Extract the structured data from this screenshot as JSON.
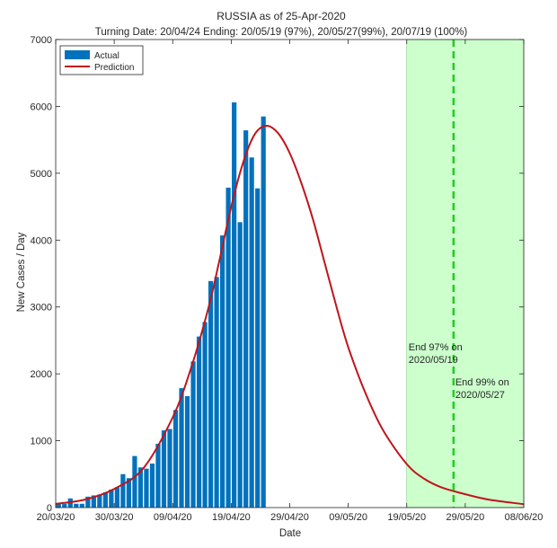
{
  "chart_data": {
    "type": "bar",
    "title": "RUSSIA as of 25-Apr-2020",
    "subtitle": "Turning Date: 20/04/24  Ending: 20/05/19 (97%), 20/05/27(99%), 20/07/19 (100%)",
    "xlabel": "Date",
    "ylabel": "New Cases / Day",
    "ylim": [
      0,
      7000
    ],
    "yticks": [
      0,
      1000,
      2000,
      3000,
      4000,
      5000,
      6000,
      7000
    ],
    "xlim": [
      "2020-03-20",
      "2020-06-08"
    ],
    "xtick_dates": [
      "2020-03-20",
      "2020-03-30",
      "2020-04-09",
      "2020-04-19",
      "2020-04-29",
      "2020-05-09",
      "2020-05-19",
      "2020-05-29",
      "2020-06-08"
    ],
    "xtick_labels": [
      "20/03/20",
      "30/03/20",
      "09/04/20",
      "19/04/20",
      "29/04/20",
      "09/05/20",
      "19/05/20",
      "29/05/20",
      "08/06/20"
    ],
    "grid": false,
    "legend": {
      "position": "top-left",
      "entries": [
        "Actual",
        "Prediction"
      ]
    },
    "series": [
      {
        "name": "Actual",
        "type": "bar",
        "color": "#0072BD",
        "points": [
          [
            "2020-03-20",
            53
          ],
          [
            "2020-03-21",
            53
          ],
          [
            "2020-03-22",
            137
          ],
          [
            "2020-03-23",
            57
          ],
          [
            "2020-03-24",
            57
          ],
          [
            "2020-03-25",
            163
          ],
          [
            "2020-03-26",
            182
          ],
          [
            "2020-03-27",
            196
          ],
          [
            "2020-03-28",
            228
          ],
          [
            "2020-03-29",
            270
          ],
          [
            "2020-03-30",
            302
          ],
          [
            "2020-03-31",
            500
          ],
          [
            "2020-04-01",
            440
          ],
          [
            "2020-04-02",
            771
          ],
          [
            "2020-04-03",
            601
          ],
          [
            "2020-04-04",
            582
          ],
          [
            "2020-04-05",
            658
          ],
          [
            "2020-04-06",
            954
          ],
          [
            "2020-04-07",
            1154
          ],
          [
            "2020-04-08",
            1175
          ],
          [
            "2020-04-09",
            1459
          ],
          [
            "2020-04-10",
            1786
          ],
          [
            "2020-04-11",
            1667
          ],
          [
            "2020-04-12",
            2186
          ],
          [
            "2020-04-13",
            2558
          ],
          [
            "2020-04-14",
            2774
          ],
          [
            "2020-04-15",
            3388
          ],
          [
            "2020-04-16",
            3448
          ],
          [
            "2020-04-17",
            4070
          ],
          [
            "2020-04-18",
            4785
          ],
          [
            "2020-04-19",
            6060
          ],
          [
            "2020-04-20",
            4268
          ],
          [
            "2020-04-21",
            5642
          ],
          [
            "2020-04-22",
            5236
          ],
          [
            "2020-04-23",
            4774
          ],
          [
            "2020-04-24",
            5849
          ]
        ]
      },
      {
        "name": "Prediction",
        "type": "line",
        "color": "#C0151B",
        "points": [
          [
            "2020-03-20",
            55
          ],
          [
            "2020-03-25",
            120
          ],
          [
            "2020-03-30",
            280
          ],
          [
            "2020-04-04",
            590
          ],
          [
            "2020-04-09",
            1350
          ],
          [
            "2020-04-12",
            2050
          ],
          [
            "2020-04-15",
            2950
          ],
          [
            "2020-04-17",
            3700
          ],
          [
            "2020-04-19",
            4500
          ],
          [
            "2020-04-21",
            5150
          ],
          [
            "2020-04-23",
            5580
          ],
          [
            "2020-04-25",
            5710
          ],
          [
            "2020-04-27",
            5600
          ],
          [
            "2020-04-29",
            5300
          ],
          [
            "2020-05-01",
            4850
          ],
          [
            "2020-05-03",
            4300
          ],
          [
            "2020-05-05",
            3650
          ],
          [
            "2020-05-07",
            3000
          ],
          [
            "2020-05-09",
            2400
          ],
          [
            "2020-05-12",
            1700
          ],
          [
            "2020-05-15",
            1150
          ],
          [
            "2020-05-19",
            650
          ],
          [
            "2020-05-22",
            430
          ],
          [
            "2020-05-25",
            300
          ],
          [
            "2020-05-29",
            200
          ],
          [
            "2020-06-02",
            120
          ],
          [
            "2020-06-08",
            50
          ]
        ]
      }
    ],
    "shaded_region": {
      "start": "2020-05-19",
      "end": "2020-06-08",
      "color": "#CCFFCC"
    },
    "vertical_lines": [
      {
        "date": "2020-05-27",
        "color": "#22CC22",
        "style": "dashed"
      }
    ],
    "annotations": [
      {
        "date": "2020-05-19",
        "y": 2350,
        "lines": [
          "End 97% on",
          "2020/05/19"
        ]
      },
      {
        "date": "2020-05-27",
        "y": 1830,
        "lines": [
          "End 99% on",
          "2020/05/27"
        ]
      }
    ]
  }
}
